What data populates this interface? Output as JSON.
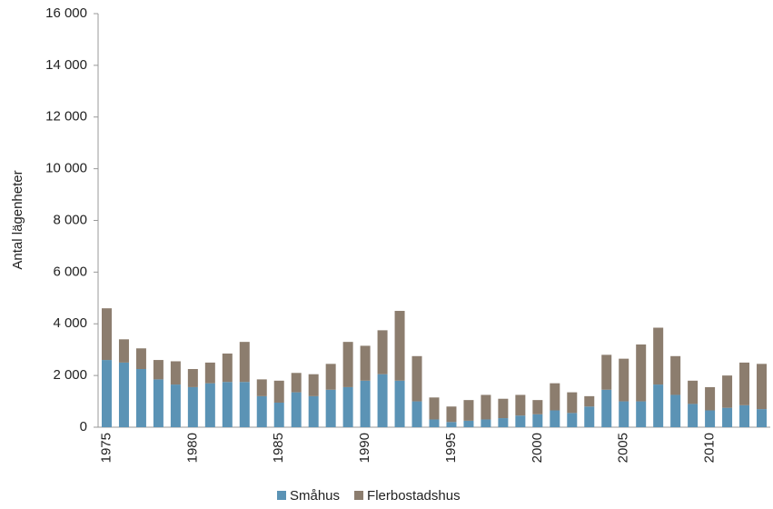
{
  "chart_data": {
    "type": "stacked_bar",
    "y_label": "Antal lägenheter",
    "categories": [
      "1975",
      null,
      null,
      null,
      null,
      "1980",
      null,
      null,
      null,
      null,
      "1985",
      null,
      null,
      null,
      null,
      "1990",
      null,
      null,
      null,
      null,
      "1995",
      null,
      null,
      null,
      null,
      "2000",
      null,
      null,
      null,
      null,
      "2005",
      null,
      null,
      null,
      null,
      "2010",
      null,
      null,
      null
    ],
    "series": [
      {
        "name": "Småhus",
        "color": "#5b93b5",
        "values": [
          2600,
          2500,
          2250,
          1850,
          1650,
          1550,
          1700,
          1750,
          1750,
          1200,
          950,
          1350,
          1200,
          1450,
          1550,
          1800,
          2050,
          1800,
          1000,
          300,
          200,
          250,
          300,
          350,
          450,
          500,
          650,
          550,
          800,
          1450,
          1000,
          1000,
          1650,
          1250,
          900,
          650,
          750,
          850,
          700
        ]
      },
      {
        "name": "Flerbostadshus",
        "color": "#8c7d6e",
        "values": [
          2000,
          900,
          800,
          750,
          900,
          700,
          800,
          1100,
          1550,
          650,
          850,
          750,
          850,
          1000,
          1750,
          1350,
          1700,
          2700,
          1750,
          850,
          600,
          800,
          950,
          750,
          800,
          550,
          1050,
          800,
          400,
          1350,
          1650,
          2200,
          2200,
          1500,
          900,
          900,
          1250,
          1650,
          1750
        ]
      }
    ],
    "ylim": [
      0,
      16000
    ],
    "yticks": [
      0,
      {
        "value": 2000,
        "label": "2 000"
      },
      {
        "value": 4000,
        "label": "4 000"
      },
      {
        "value": 6000,
        "label": "6 000"
      },
      {
        "value": 8000,
        "label": "8 000"
      },
      {
        "value": 10000,
        "label": "10 000"
      },
      {
        "value": 12000,
        "label": "12 000"
      },
      {
        "value": 14000,
        "label": "14 000"
      },
      {
        "value": 16000,
        "label": "16 000"
      }
    ],
    "legend": "bottom"
  }
}
